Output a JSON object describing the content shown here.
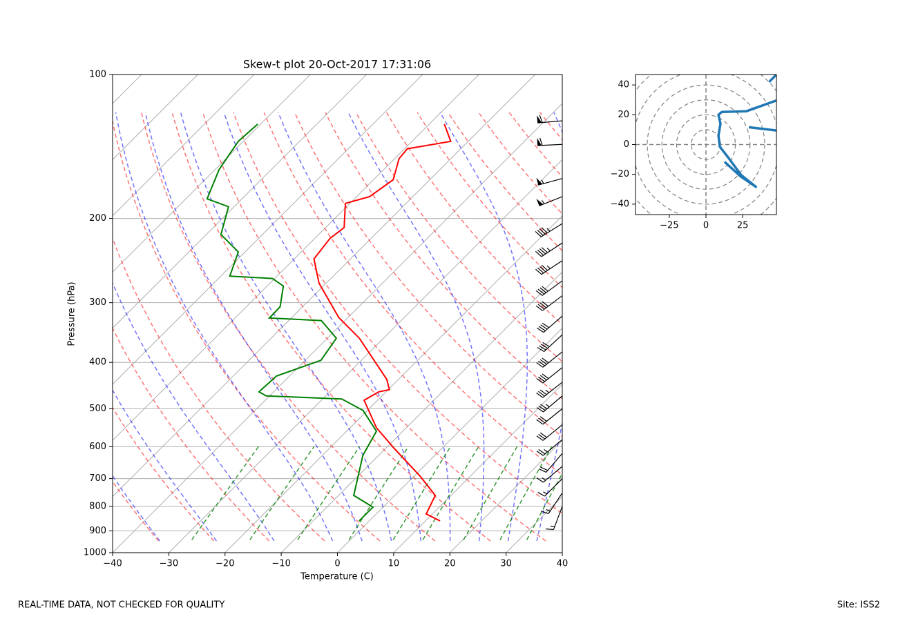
{
  "chart_data": [
    {
      "type": "skewt",
      "title": "Skew-t plot 20-Oct-2017 17:31:06",
      "x_label": "Temperature (C)",
      "y_label": "Pressure (hPa)",
      "xlim": [
        -40,
        40
      ],
      "xticks": [
        {
          "value": -40,
          "label": "−40"
        },
        {
          "value": -30,
          "label": "−30"
        },
        {
          "value": -20,
          "label": "−20"
        },
        {
          "value": -10,
          "label": "−10"
        },
        0,
        10,
        20,
        30,
        40
      ],
      "ylim": [
        1000,
        100
      ],
      "yticks": [
        100,
        200,
        300,
        400,
        500,
        600,
        700,
        800,
        900,
        1000
      ],
      "y_scale": "log",
      "grid": true,
      "series": [
        {
          "color": "#ff0000",
          "pressure": [
            858,
            830,
            759,
            691,
            605,
            548,
            480,
            461,
            456,
            434,
            356,
            322,
            273,
            243,
            220,
            209,
            186,
            180,
            166,
            150,
            143,
            138,
            127
          ],
          "values": [
            12.6,
            8.9,
            7.2,
            1.0,
            -8.5,
            -15.3,
            -22.4,
            -21.3,
            -19.8,
            -22.1,
            -34.3,
            -41.7,
            -51.3,
            -56.5,
            -57.3,
            -56.7,
            -60.8,
            -57.7,
            -56.5,
            -59.2,
            -59.5,
            -53.1,
            -57.3
          ]
        },
        {
          "color": "#008000",
          "pressure": [
            858,
            803,
            759,
            626,
            557,
            504,
            477,
            470,
            461,
            427,
            396,
            356,
            327,
            323,
            306,
            277,
            267,
            264,
            235,
            216,
            189,
            182,
            158,
            138,
            127
          ],
          "values": [
            -1.8,
            -1.8,
            -7.3,
            -12.8,
            -14.7,
            -20.8,
            -26.6,
            -40.6,
            -42.6,
            -42.3,
            -37.2,
            -38.4,
            -44.2,
            -53.9,
            -54.0,
            -57.1,
            -60.4,
            -68.4,
            -71.2,
            -77.4,
            -81.0,
            -86.2,
            -89.3,
            -90.9,
            -90.5
          ]
        }
      ],
      "wind": {
        "pressure": [
          125,
          140,
          165,
          180,
          205,
          225,
          245,
          270,
          290,
          320,
          350,
          380,
          410,
          440,
          470,
          500,
          540,
          580,
          620,
          660,
          700,
          750,
          800
        ],
        "u": [
          60,
          62,
          55,
          50,
          40,
          38,
          36,
          34,
          33,
          30,
          28,
          30,
          30,
          28,
          26,
          25,
          22,
          18,
          12,
          12,
          10,
          8,
          6
        ],
        "v": [
          5,
          3,
          15,
          20,
          25,
          25,
          24,
          25,
          25,
          26,
          26,
          24,
          24,
          22,
          22,
          20,
          18,
          15,
          14,
          10,
          10,
          12,
          16
        ]
      }
    },
    {
      "type": "line",
      "color": "#1f77b4",
      "x": [
        12.7,
        23.6,
        34,
        24,
        15.6,
        9.4,
        8.5,
        9.9,
        8.5,
        10.8,
        27.4,
        52,
        null,
        29.2,
        52,
        null,
        43,
        50
      ],
      "values": [
        -11.6,
        -21.4,
        -28.4,
        -20.5,
        -9.3,
        -1.4,
        6.0,
        14.0,
        20.0,
        21.9,
        22.3,
        31,
        null,
        11.6,
        9.0,
        null,
        42,
        49
      ],
      "xlim": [
        -48,
        48
      ],
      "xticks": [
        {
          "value": -25,
          "label": "−25"
        },
        0,
        25
      ],
      "ylim": [
        -47,
        47
      ],
      "yticks": [
        {
          "value": -40,
          "label": "−40"
        },
        {
          "value": -20,
          "label": "−20"
        },
        0,
        20,
        40
      ],
      "grid": true
    }
  ],
  "footer": {
    "disclaimer": "REAL-TIME DATA, NOT CHECKED FOR QUALITY",
    "site": "Site: ISS2"
  }
}
